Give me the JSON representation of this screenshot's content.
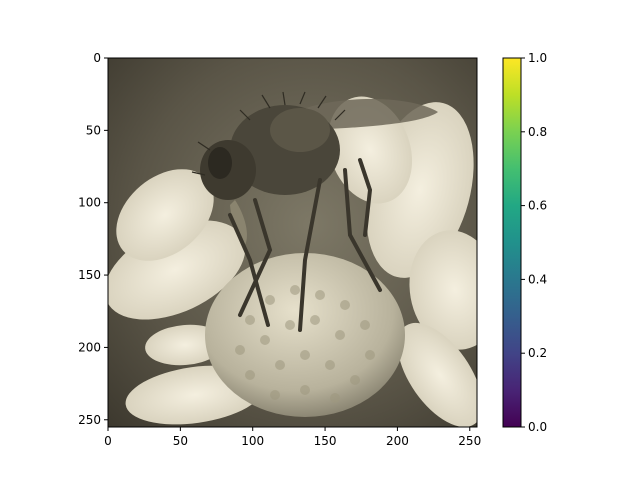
{
  "figure": {
    "image_description_alt": "",
    "sepia_colors": {
      "dark": "#3e3a2f",
      "mid": "#8f8a76",
      "light": "#e8e2cf",
      "bright": "#f6f1e2"
    }
  },
  "chart_data": {
    "type": "heatmap",
    "title": "",
    "xlabel": "",
    "ylabel": "",
    "xlim": [
      0,
      255
    ],
    "ylim": [
      255,
      0
    ],
    "x_ticks": [
      0,
      50,
      100,
      150,
      200,
      250
    ],
    "y_ticks": [
      0,
      50,
      100,
      150,
      200,
      250
    ],
    "x_tick_labels": [
      "0",
      "50",
      "100",
      "150",
      "200",
      "250"
    ],
    "y_tick_labels": [
      "0",
      "50",
      "100",
      "150",
      "200",
      "250"
    ],
    "colorbar": {
      "colormap": "viridis",
      "range": [
        0.0,
        1.0
      ],
      "ticks": [
        0.0,
        0.2,
        0.4,
        0.6,
        0.8,
        1.0
      ],
      "tick_labels": [
        "0.0",
        "0.2",
        "0.4",
        "0.6",
        "0.8",
        "1.0"
      ],
      "colors": [
        "#440154",
        "#414487",
        "#2a788e",
        "#22a884",
        "#7ad151",
        "#fde725"
      ]
    },
    "grid": false
  }
}
